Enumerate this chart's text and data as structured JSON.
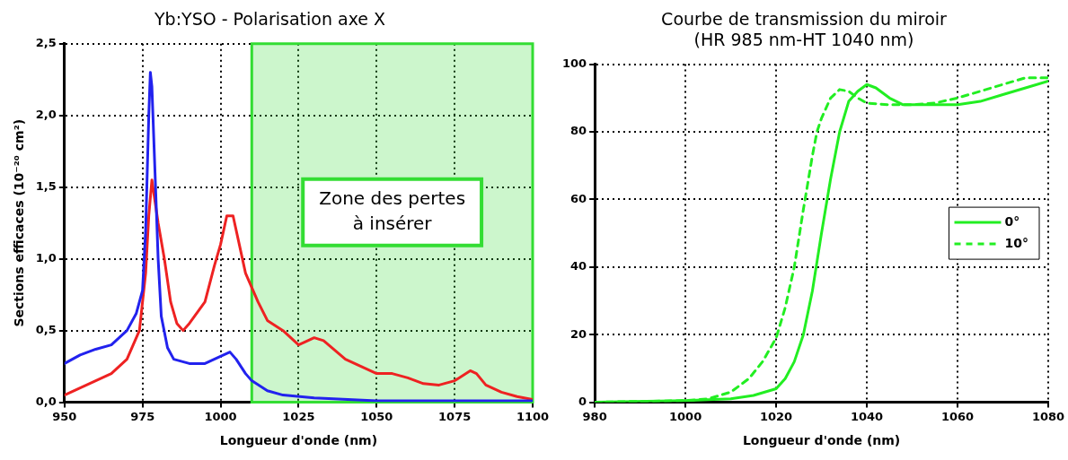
{
  "chart_data": [
    {
      "type": "line",
      "title": "Yb:YSO - Polarisation axe X",
      "xlabel": "Longueur d'onde (nm)",
      "ylabel": "Sections efficaces (10⁻²⁰ cm²)",
      "xlim": [
        950,
        1100
      ],
      "xticks": [
        950,
        975,
        1000,
        1025,
        1050,
        1075,
        1100
      ],
      "ylim": [
        0,
        2.5
      ],
      "yticks": [
        {
          "value": 0,
          "label": "0,0"
        },
        {
          "value": 0.5,
          "label": "0,5"
        },
        {
          "value": 1,
          "label": "1,0"
        },
        {
          "value": 1.5,
          "label": "1,5"
        },
        {
          "value": 2,
          "label": "2,0"
        },
        {
          "value": 2.5,
          "label": "2,5"
        }
      ],
      "grid": true,
      "legend": false,
      "marker": "none",
      "line_style": "solid",
      "bands": [
        {
          "axis": "x",
          "from": 1010,
          "to": 1100,
          "label": "Zone des pertes\nà insérer",
          "color": "#33dd33"
        }
      ],
      "series": [
        {
          "color": "#2222ee",
          "x": [
            950,
            955,
            960,
            965,
            970,
            973,
            975,
            976,
            977,
            977.5,
            978,
            979,
            980,
            981,
            983,
            985,
            990,
            995,
            1000,
            1003,
            1005,
            1008,
            1010,
            1015,
            1020,
            1030,
            1050,
            1075,
            1100
          ],
          "values": [
            0.27,
            0.33,
            0.37,
            0.4,
            0.5,
            0.62,
            0.78,
            1.2,
            2.0,
            2.3,
            2.2,
            1.6,
            1.0,
            0.6,
            0.38,
            0.3,
            0.27,
            0.27,
            0.32,
            0.35,
            0.3,
            0.2,
            0.15,
            0.08,
            0.05,
            0.03,
            0.01,
            0.01,
            0.01
          ]
        },
        {
          "color": "#ee2222",
          "x": [
            950,
            955,
            960,
            965,
            970,
            974,
            976,
            977,
            978,
            979,
            980,
            982,
            984,
            986,
            988,
            990,
            995,
            998,
            1000,
            1002,
            1004,
            1006,
            1008,
            1010,
            1012,
            1015,
            1020,
            1025,
            1030,
            1033,
            1040,
            1045,
            1050,
            1055,
            1060,
            1065,
            1070,
            1075,
            1080,
            1082,
            1085,
            1090,
            1095,
            1100
          ],
          "values": [
            0.05,
            0.1,
            0.15,
            0.2,
            0.3,
            0.5,
            0.9,
            1.3,
            1.55,
            1.4,
            1.25,
            1.0,
            0.7,
            0.55,
            0.5,
            0.55,
            0.7,
            0.95,
            1.1,
            1.3,
            1.3,
            1.1,
            0.9,
            0.8,
            0.7,
            0.57,
            0.5,
            0.4,
            0.45,
            0.43,
            0.3,
            0.25,
            0.2,
            0.2,
            0.17,
            0.13,
            0.12,
            0.15,
            0.22,
            0.2,
            0.12,
            0.07,
            0.04,
            0.02
          ]
        }
      ]
    },
    {
      "type": "line",
      "title": "Courbe de transmission du miroir\n(HR 985 nm-HT 1040 nm)",
      "xlabel": "Longueur d'onde (nm)",
      "xlim": [
        980,
        1080
      ],
      "xticks": [
        980,
        1000,
        1020,
        1040,
        1060,
        1080
      ],
      "ylim": [
        0,
        100
      ],
      "yticks": [
        0,
        20,
        40,
        60,
        80,
        100
      ],
      "grid": true,
      "legend": "right",
      "marker": "none",
      "series": [
        {
          "name": "0°",
          "color": "#22ee22",
          "line_style": "solid",
          "x": [
            980,
            1000,
            1010,
            1015,
            1020,
            1022,
            1024,
            1026,
            1028,
            1030,
            1032,
            1034,
            1036,
            1038,
            1040,
            1042,
            1045,
            1048,
            1055,
            1060,
            1065,
            1070,
            1075,
            1080
          ],
          "values": [
            0,
            0.5,
            1,
            2,
            4,
            7,
            12,
            20,
            33,
            50,
            66,
            80,
            89,
            92,
            94,
            93,
            90,
            88,
            88,
            88,
            89,
            91,
            93,
            95
          ]
        },
        {
          "name": "10°",
          "color": "#22ee22",
          "line_style": "dashed",
          "x": [
            980,
            1000,
            1005,
            1010,
            1014,
            1017,
            1020,
            1022,
            1024,
            1026,
            1028,
            1029,
            1030,
            1032,
            1034,
            1036,
            1038,
            1040,
            1045,
            1050,
            1055,
            1060,
            1065,
            1070,
            1075,
            1080
          ],
          "values": [
            0,
            0.5,
            1,
            3,
            7,
            12,
            19,
            28,
            40,
            57,
            73,
            80,
            84,
            90,
            92.5,
            92,
            90,
            88.5,
            88,
            88,
            88.5,
            90,
            92,
            94,
            96,
            96
          ]
        }
      ]
    }
  ]
}
